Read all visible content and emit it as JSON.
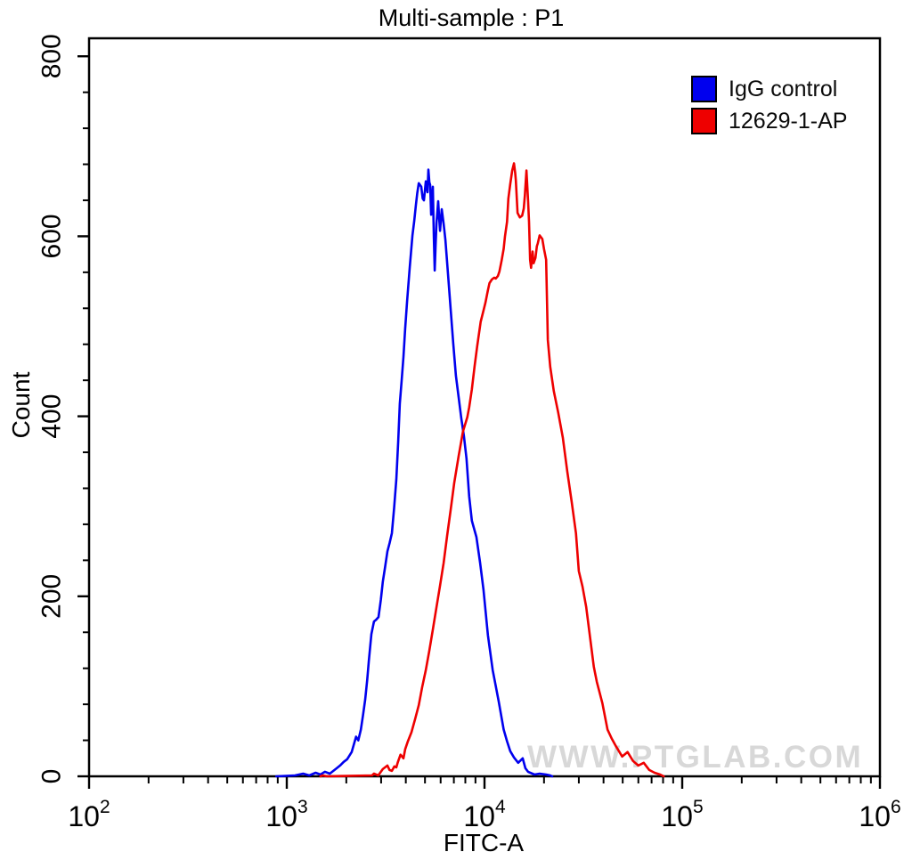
{
  "title": "Multi-sample : P1",
  "watermark": "WWW.PTGLAB.COM",
  "colors": {
    "control_series": "#0000ee",
    "antibody_series": "#ee0000",
    "axis": "#000000",
    "watermark": "#d8d8d8"
  },
  "legend": [
    {
      "label": "IgG control",
      "color": "#0000ee"
    },
    {
      "label": "12629-1-AP",
      "color": "#ee0000"
    }
  ],
  "chart_data": {
    "type": "line",
    "subtype": "flow-cytometry-histogram",
    "title": "Multi-sample : P1",
    "xlabel": "FITC-A",
    "ylabel": "Count",
    "x_scale": "log10",
    "xlim": [
      100,
      1000000
    ],
    "ylim": [
      0,
      820
    ],
    "grid": false,
    "legend_position": "top-right-inside",
    "y_major_ticks": [
      0,
      200,
      400,
      600,
      800
    ],
    "y_minor_step": 40,
    "x_decade_ticks": [
      {
        "value": 100,
        "base": "10",
        "exp": "2"
      },
      {
        "value": 1000,
        "base": "10",
        "exp": "3"
      },
      {
        "value": 10000,
        "base": "10",
        "exp": "4"
      },
      {
        "value": 100000,
        "base": "10",
        "exp": "5"
      },
      {
        "value": 1000000,
        "base": "10",
        "exp": "6"
      }
    ],
    "series": [
      {
        "name": "IgG control",
        "color": "#0000ee",
        "peak": {
          "x": 5200,
          "count": 674
        },
        "points": [
          [
            885,
            0
          ],
          [
            1100,
            1
          ],
          [
            1210,
            3
          ],
          [
            1300,
            1
          ],
          [
            1400,
            4
          ],
          [
            1480,
            2
          ],
          [
            1560,
            5
          ],
          [
            1650,
            3
          ],
          [
            1720,
            6
          ],
          [
            1790,
            9
          ],
          [
            1860,
            12
          ],
          [
            1940,
            16
          ],
          [
            2020,
            19
          ],
          [
            2130,
            27
          ],
          [
            2240,
            44
          ],
          [
            2300,
            40
          ],
          [
            2370,
            52
          ],
          [
            2430,
            68
          ],
          [
            2490,
            85
          ],
          [
            2550,
            107
          ],
          [
            2600,
            128
          ],
          [
            2680,
            158
          ],
          [
            2760,
            172
          ],
          [
            2830,
            174
          ],
          [
            2910,
            177
          ],
          [
            2990,
            196
          ],
          [
            3060,
            216
          ],
          [
            3140,
            232
          ],
          [
            3230,
            250
          ],
          [
            3310,
            259
          ],
          [
            3400,
            270
          ],
          [
            3490,
            298
          ],
          [
            3580,
            330
          ],
          [
            3660,
            372
          ],
          [
            3730,
            414
          ],
          [
            3810,
            440
          ],
          [
            3890,
            466
          ],
          [
            3970,
            497
          ],
          [
            4060,
            528
          ],
          [
            4190,
            566
          ],
          [
            4320,
            601
          ],
          [
            4410,
            617
          ],
          [
            4500,
            635
          ],
          [
            4570,
            648
          ],
          [
            4650,
            659
          ],
          [
            4790,
            655
          ],
          [
            4870,
            642
          ],
          [
            4940,
            640
          ],
          [
            5050,
            661
          ],
          [
            5150,
            649
          ],
          [
            5200,
            674
          ],
          [
            5260,
            660
          ],
          [
            5310,
            657
          ],
          [
            5370,
            624
          ],
          [
            5480,
            655
          ],
          [
            5540,
            600
          ],
          [
            5600,
            562
          ],
          [
            5660,
            590
          ],
          [
            5720,
            615
          ],
          [
            5830,
            639
          ],
          [
            5900,
            620
          ],
          [
            5960,
            606
          ],
          [
            6080,
            630
          ],
          [
            6210,
            614
          ],
          [
            6340,
            596
          ],
          [
            6540,
            557
          ],
          [
            6740,
            519
          ],
          [
            6950,
            481
          ],
          [
            7170,
            445
          ],
          [
            7400,
            421
          ],
          [
            7630,
            398
          ],
          [
            7870,
            378
          ],
          [
            8110,
            353
          ],
          [
            8370,
            311
          ],
          [
            8630,
            284
          ],
          [
            9100,
            266
          ],
          [
            9500,
            237
          ],
          [
            9890,
            207
          ],
          [
            10400,
            157
          ],
          [
            11000,
            118
          ],
          [
            11800,
            83
          ],
          [
            12500,
            52
          ],
          [
            13000,
            39
          ],
          [
            13500,
            28
          ],
          [
            14100,
            21
          ],
          [
            14800,
            15
          ],
          [
            15600,
            20
          ],
          [
            16100,
            9
          ],
          [
            16600,
            5
          ],
          [
            17900,
            2
          ],
          [
            19000,
            3
          ],
          [
            20500,
            2
          ],
          [
            21500,
            1
          ],
          [
            22000,
            0
          ]
        ]
      },
      {
        "name": "12629-1-AP",
        "color": "#ee0000",
        "peak": {
          "x": 14100,
          "count": 681
        },
        "points": [
          [
            1480,
            0
          ],
          [
            1520,
            1
          ],
          [
            1600,
            0
          ],
          [
            2700,
            1
          ],
          [
            2760,
            3
          ],
          [
            2900,
            1
          ],
          [
            3060,
            8
          ],
          [
            3230,
            12
          ],
          [
            3310,
            7
          ],
          [
            3400,
            6
          ],
          [
            3500,
            11
          ],
          [
            3580,
            10
          ],
          [
            3650,
            16
          ],
          [
            3760,
            24
          ],
          [
            3890,
            20
          ],
          [
            3970,
            30
          ],
          [
            4100,
            39
          ],
          [
            4270,
            49
          ],
          [
            4460,
            64
          ],
          [
            4650,
            79
          ],
          [
            4840,
            99
          ],
          [
            5050,
            118
          ],
          [
            5260,
            140
          ],
          [
            5480,
            163
          ],
          [
            5720,
            188
          ],
          [
            5960,
            212
          ],
          [
            6210,
            237
          ],
          [
            6470,
            267
          ],
          [
            6740,
            296
          ],
          [
            7030,
            326
          ],
          [
            7400,
            356
          ],
          [
            7780,
            383
          ],
          [
            8190,
            399
          ],
          [
            8370,
            410
          ],
          [
            8630,
            430
          ],
          [
            8900,
            455
          ],
          [
            9180,
            478
          ],
          [
            9560,
            505
          ],
          [
            9900,
            518
          ],
          [
            10100,
            526
          ],
          [
            10400,
            540
          ],
          [
            10600,
            548
          ],
          [
            10900,
            552
          ],
          [
            11200,
            554
          ],
          [
            11400,
            553
          ],
          [
            11700,
            556
          ],
          [
            11900,
            561
          ],
          [
            12200,
            573
          ],
          [
            12500,
            586
          ],
          [
            12700,
            600
          ],
          [
            13000,
            616
          ],
          [
            13200,
            642
          ],
          [
            13500,
            658
          ],
          [
            13800,
            673
          ],
          [
            14100,
            681
          ],
          [
            14300,
            670
          ],
          [
            14400,
            662
          ],
          [
            14700,
            626
          ],
          [
            15100,
            621
          ],
          [
            15500,
            623
          ],
          [
            15800,
            631
          ],
          [
            16000,
            645
          ],
          [
            16300,
            673
          ],
          [
            16600,
            640
          ],
          [
            16800,
            616
          ],
          [
            17000,
            574
          ],
          [
            17200,
            565
          ],
          [
            17500,
            583
          ],
          [
            17700,
            570
          ],
          [
            18100,
            576
          ],
          [
            18400,
            589
          ],
          [
            18600,
            592
          ],
          [
            19000,
            601
          ],
          [
            19600,
            597
          ],
          [
            20000,
            586
          ],
          [
            20500,
            574
          ],
          [
            20900,
            485
          ],
          [
            21500,
            455
          ],
          [
            22400,
            428
          ],
          [
            23600,
            404
          ],
          [
            24900,
            376
          ],
          [
            26200,
            339
          ],
          [
            27600,
            305
          ],
          [
            29000,
            270
          ],
          [
            30000,
            228
          ],
          [
            31300,
            211
          ],
          [
            32700,
            188
          ],
          [
            34400,
            150
          ],
          [
            35700,
            122
          ],
          [
            37000,
            105
          ],
          [
            39500,
            81
          ],
          [
            41900,
            52
          ],
          [
            44000,
            42
          ],
          [
            46300,
            33
          ],
          [
            49700,
            22
          ],
          [
            52900,
            27
          ],
          [
            56400,
            17
          ],
          [
            60000,
            12
          ],
          [
            63900,
            15
          ],
          [
            68100,
            7
          ],
          [
            72500,
            4
          ],
          [
            77300,
            2
          ],
          [
            80600,
            0
          ]
        ]
      }
    ]
  }
}
